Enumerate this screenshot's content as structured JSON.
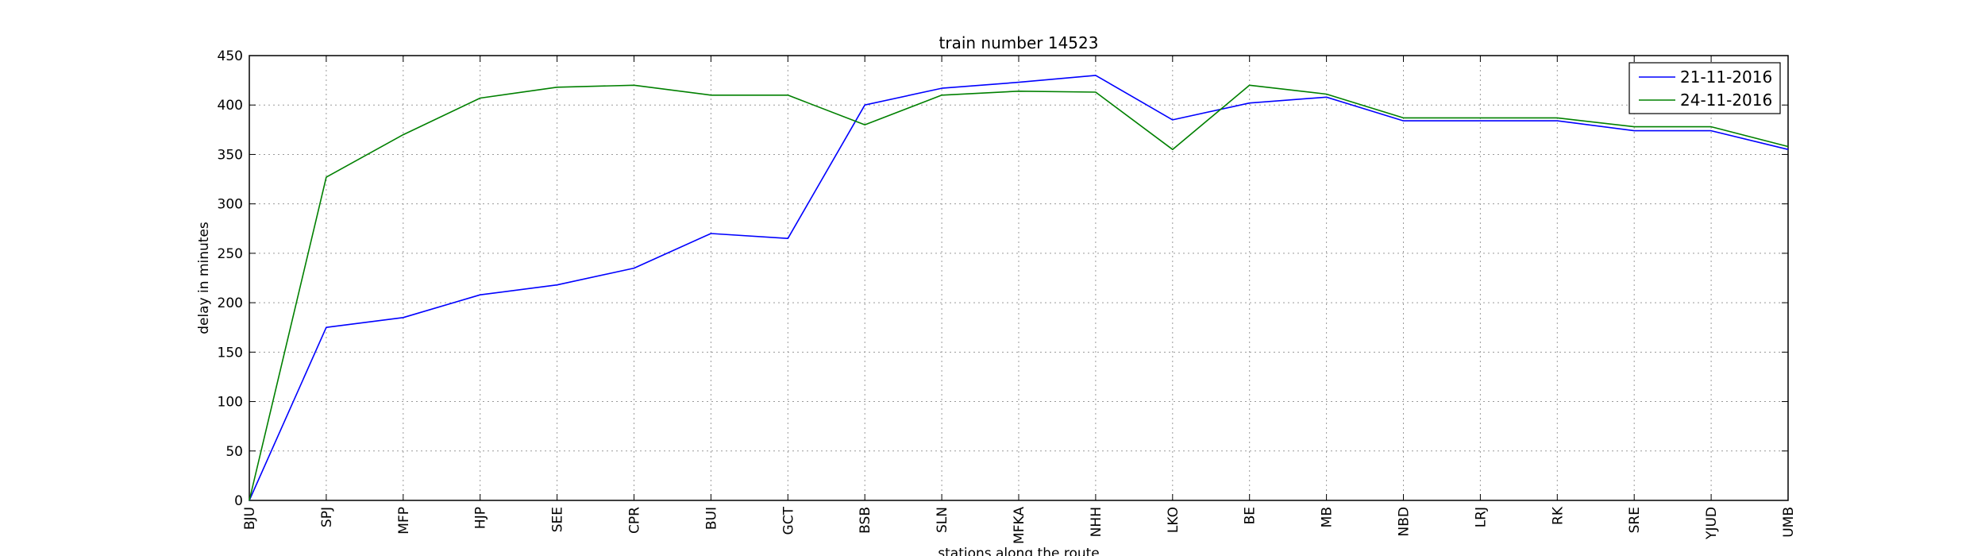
{
  "chart_data": {
    "type": "line",
    "title": "train number 14523",
    "xlabel": "stations along the route",
    "ylabel": "delay in minutes",
    "categories": [
      "BJU",
      "SPJ",
      "MFP",
      "HJP",
      "SEE",
      "CPR",
      "BUI",
      "GCT",
      "BSB",
      "SLN",
      "MFKA",
      "NHH",
      "LKO",
      "BE",
      "MB",
      "NBD",
      "LRJ",
      "RK",
      "SRE",
      "YJUD",
      "UMB"
    ],
    "ylim": [
      0,
      450
    ],
    "yticks": [
      0,
      50,
      100,
      150,
      200,
      250,
      300,
      350,
      400,
      450
    ],
    "grid": true,
    "legend_position": "top-right",
    "series": [
      {
        "name": "21-11-2016",
        "color": "#0000ff",
        "values": [
          0,
          175,
          185,
          208,
          218,
          235,
          270,
          265,
          400,
          417,
          423,
          430,
          385,
          402,
          408,
          384,
          384,
          384,
          374,
          374,
          355
        ]
      },
      {
        "name": "24-11-2016",
        "color": "#008000",
        "values": [
          0,
          327,
          370,
          407,
          418,
          420,
          410,
          410,
          380,
          410,
          414,
          413,
          355,
          420,
          411,
          387,
          387,
          387,
          378,
          378,
          358
        ]
      }
    ]
  }
}
